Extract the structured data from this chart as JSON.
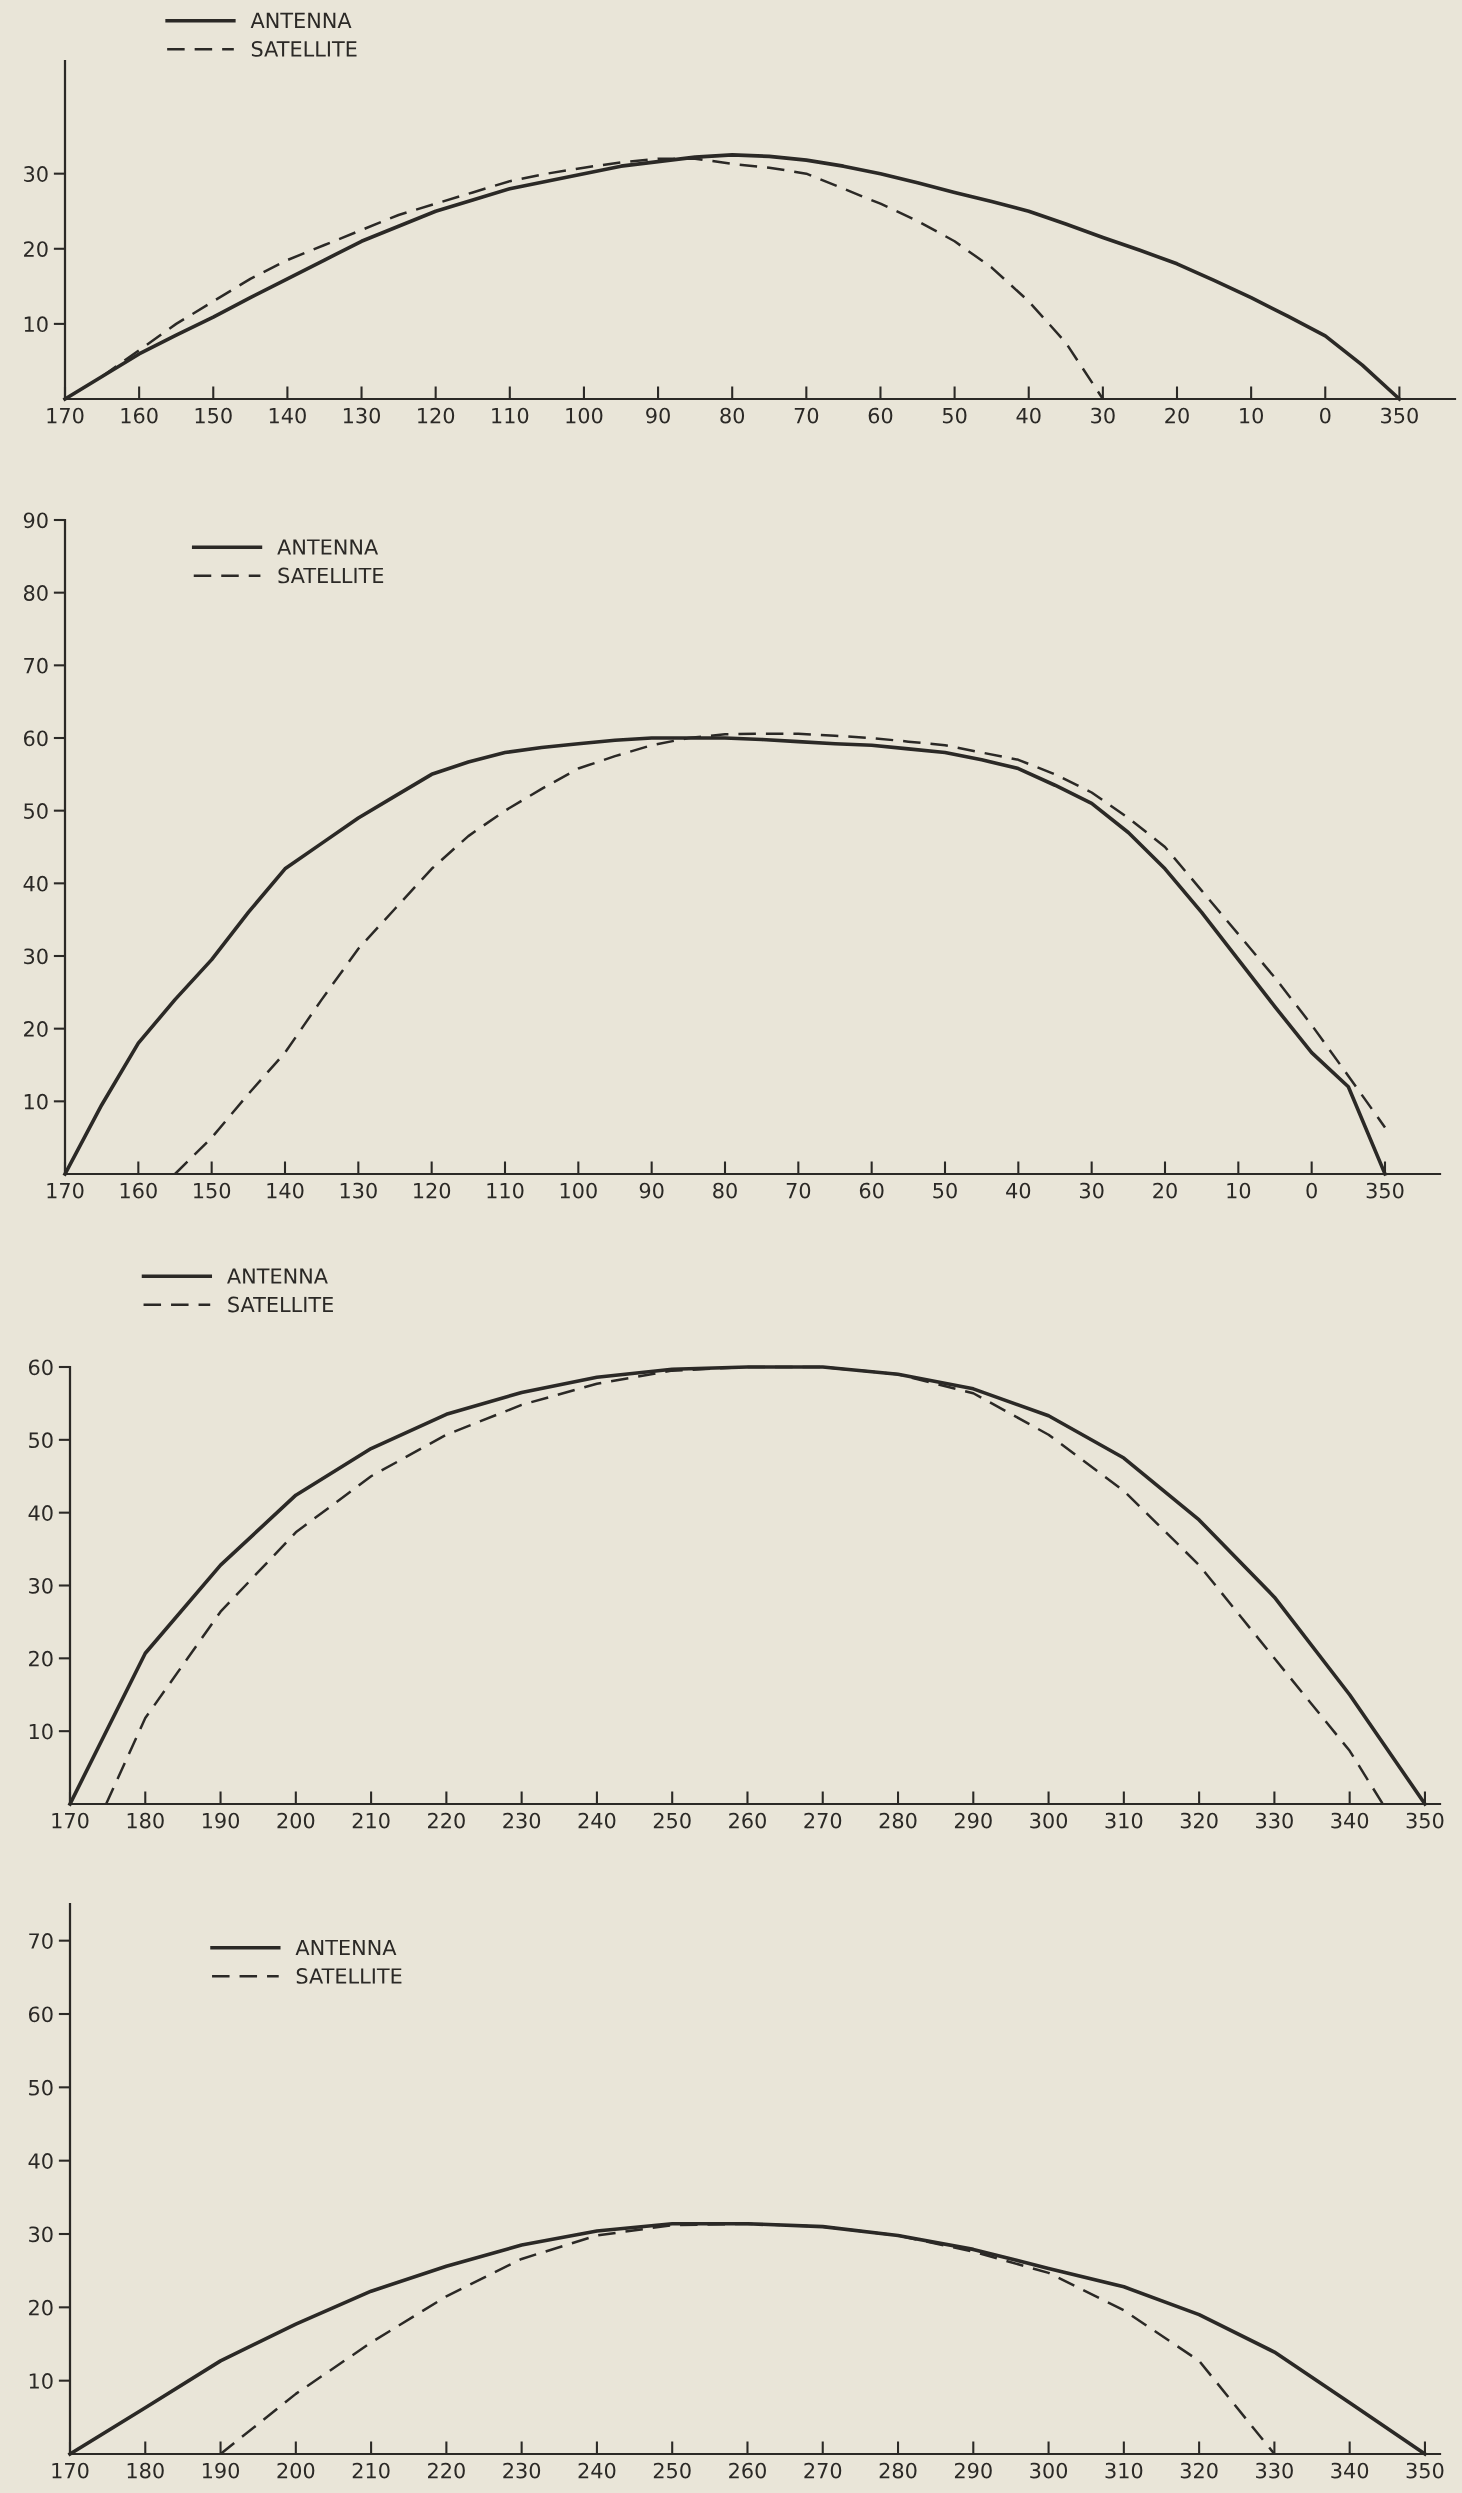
{
  "chart_data": [
    {
      "type": "line",
      "legend": "top left",
      "ylim": [
        0,
        45
      ],
      "categories": [
        "170",
        null,
        "160",
        null,
        "150",
        null,
        "140",
        null,
        "130",
        null,
        "120",
        null,
        "110",
        null,
        "100",
        null,
        "90",
        null,
        "80",
        null,
        "70",
        null,
        "60",
        null,
        "50",
        null,
        "40",
        null,
        "30",
        null,
        "20",
        null,
        "10",
        null,
        "0",
        null,
        "350",
        null
      ],
      "yticks": [
        10,
        20,
        30
      ],
      "series": [
        {
          "name": "ANTENNA",
          "color": "#2b2926",
          "line_style": "solid",
          "values": [
            0,
            3,
            6,
            8.5,
            10.9,
            13.5,
            16,
            18.5,
            21,
            23,
            25,
            26.5,
            28,
            29,
            30,
            31,
            31.6,
            32.2,
            32.5,
            32.3,
            31.8,
            31,
            30,
            28.8,
            27.5,
            26.3,
            25,
            23.3,
            21.5,
            19.8,
            18,
            15.8,
            13.5,
            11,
            8.4,
            4.5,
            0,
            null
          ]
        },
        {
          "name": "SATELLITE",
          "color": "#2b2926",
          "line_style": "dashed",
          "values": [
            null,
            3,
            6.5,
            10,
            13,
            16,
            18.5,
            20.5,
            22.5,
            24.5,
            26,
            27.5,
            29,
            30,
            30.8,
            31.5,
            32,
            32,
            31.3,
            30.8,
            30,
            28,
            26,
            23.7,
            21,
            17.5,
            13,
            7.5,
            0,
            null,
            null,
            null,
            null,
            null,
            null,
            null,
            null,
            null
          ]
        }
      ]
    },
    {
      "type": "line",
      "legend": "top left",
      "ylim": [
        0,
        90
      ],
      "categories": [
        "170",
        null,
        "160",
        null,
        "150",
        null,
        "140",
        null,
        "130",
        null,
        "120",
        null,
        "110",
        null,
        "100",
        null,
        "90",
        null,
        "80",
        null,
        "70",
        null,
        "60",
        null,
        "50",
        null,
        "40",
        null,
        "30",
        null,
        "20",
        null,
        "10",
        null,
        "0",
        null,
        "350",
        null
      ],
      "yticks": [
        10,
        20,
        30,
        40,
        50,
        60,
        70,
        80,
        90
      ],
      "series": [
        {
          "name": "ANTENNA",
          "color": "#2b2926",
          "line_style": "solid",
          "values": [
            0,
            9.5,
            18,
            24,
            29.5,
            36,
            42,
            45.5,
            49,
            52,
            55,
            56.7,
            58,
            58.7,
            59.2,
            59.7,
            60,
            60,
            60,
            59.8,
            59.5,
            59.2,
            59,
            58.5,
            58,
            57,
            55.8,
            53.5,
            51,
            47,
            42,
            36,
            29.5,
            23,
            16.7,
            12,
            0,
            null
          ]
        },
        {
          "name": "SATELLITE",
          "color": "#2b2926",
          "line_style": "dashed",
          "values": [
            null,
            null,
            null,
            0,
            5,
            11,
            16.7,
            24,
            31,
            36.5,
            42,
            46.5,
            50,
            53,
            55.8,
            57.5,
            59,
            60,
            60.5,
            60.6,
            60.6,
            60.3,
            60,
            59.5,
            59,
            58,
            57,
            55,
            52.5,
            49,
            45,
            39,
            33,
            27,
            20.5,
            13.5,
            6.4,
            null
          ]
        }
      ]
    },
    {
      "type": "line",
      "legend": "top left",
      "xlim": [
        170,
        352
      ],
      "ylim": [
        0,
        60
      ],
      "xticks": [
        170,
        180,
        190,
        200,
        210,
        220,
        230,
        240,
        250,
        260,
        270,
        280,
        290,
        300,
        310,
        320,
        330,
        340,
        350
      ],
      "yticks": [
        10,
        20,
        30,
        40,
        50,
        60
      ],
      "series": [
        {
          "name": "ANTENNA",
          "color": "#2b2926",
          "line_style": "solid",
          "x": [
            170,
            180,
            190,
            200,
            210,
            220,
            230,
            240,
            250,
            260,
            270,
            280,
            290,
            300,
            310,
            320,
            330,
            340,
            350
          ],
          "values": [
            0,
            20.7,
            32.8,
            42.4,
            48.8,
            53.5,
            56.5,
            58.6,
            59.7,
            60,
            60,
            59,
            57,
            53.3,
            47.5,
            39,
            28.4,
            15,
            0
          ]
        },
        {
          "name": "SATELLITE",
          "color": "#2b2926",
          "line_style": "dashed",
          "x": [
            174.8,
            180,
            190,
            200,
            210,
            220,
            230,
            240,
            250,
            260,
            270,
            280,
            290,
            300,
            310,
            320,
            330,
            340,
            344.4
          ],
          "values": [
            0,
            11.8,
            26.4,
            37.3,
            45,
            50.7,
            54.8,
            57.7,
            59.5,
            60,
            60,
            59,
            56.4,
            50.7,
            43,
            32.8,
            20,
            7.3,
            0
          ]
        }
      ]
    },
    {
      "type": "line",
      "legend": "top left",
      "xlim": [
        170,
        352
      ],
      "ylim": [
        0,
        75
      ],
      "xticks": [
        170,
        180,
        190,
        200,
        210,
        220,
        230,
        240,
        250,
        260,
        270,
        280,
        290,
        300,
        310,
        320,
        330,
        340,
        350
      ],
      "yticks": [
        10,
        20,
        30,
        40,
        50,
        60,
        70
      ],
      "series": [
        {
          "name": "ANTENNA",
          "color": "#2b2926",
          "line_style": "solid",
          "x": [
            170,
            180,
            190,
            200,
            210,
            220,
            230,
            240,
            250,
            260,
            270,
            280,
            290,
            300,
            310,
            320,
            330,
            340,
            350
          ],
          "values": [
            0,
            6.3,
            12.7,
            17.7,
            22.2,
            25.6,
            28.5,
            30.4,
            31.4,
            31.4,
            31,
            29.8,
            27.9,
            25.3,
            22.8,
            19,
            13.9,
            7,
            0
          ]
        },
        {
          "name": "SATELLITE",
          "color": "#2b2926",
          "line_style": "dashed",
          "x": [
            190,
            200,
            210,
            220,
            230,
            240,
            250,
            260,
            270,
            280,
            290,
            300,
            310,
            320,
            330
          ],
          "values": [
            0,
            8.2,
            15.2,
            21.5,
            26.6,
            29.8,
            31.2,
            31.4,
            31,
            29.8,
            27.6,
            24.7,
            19.6,
            12.7,
            0
          ]
        }
      ]
    }
  ]
}
